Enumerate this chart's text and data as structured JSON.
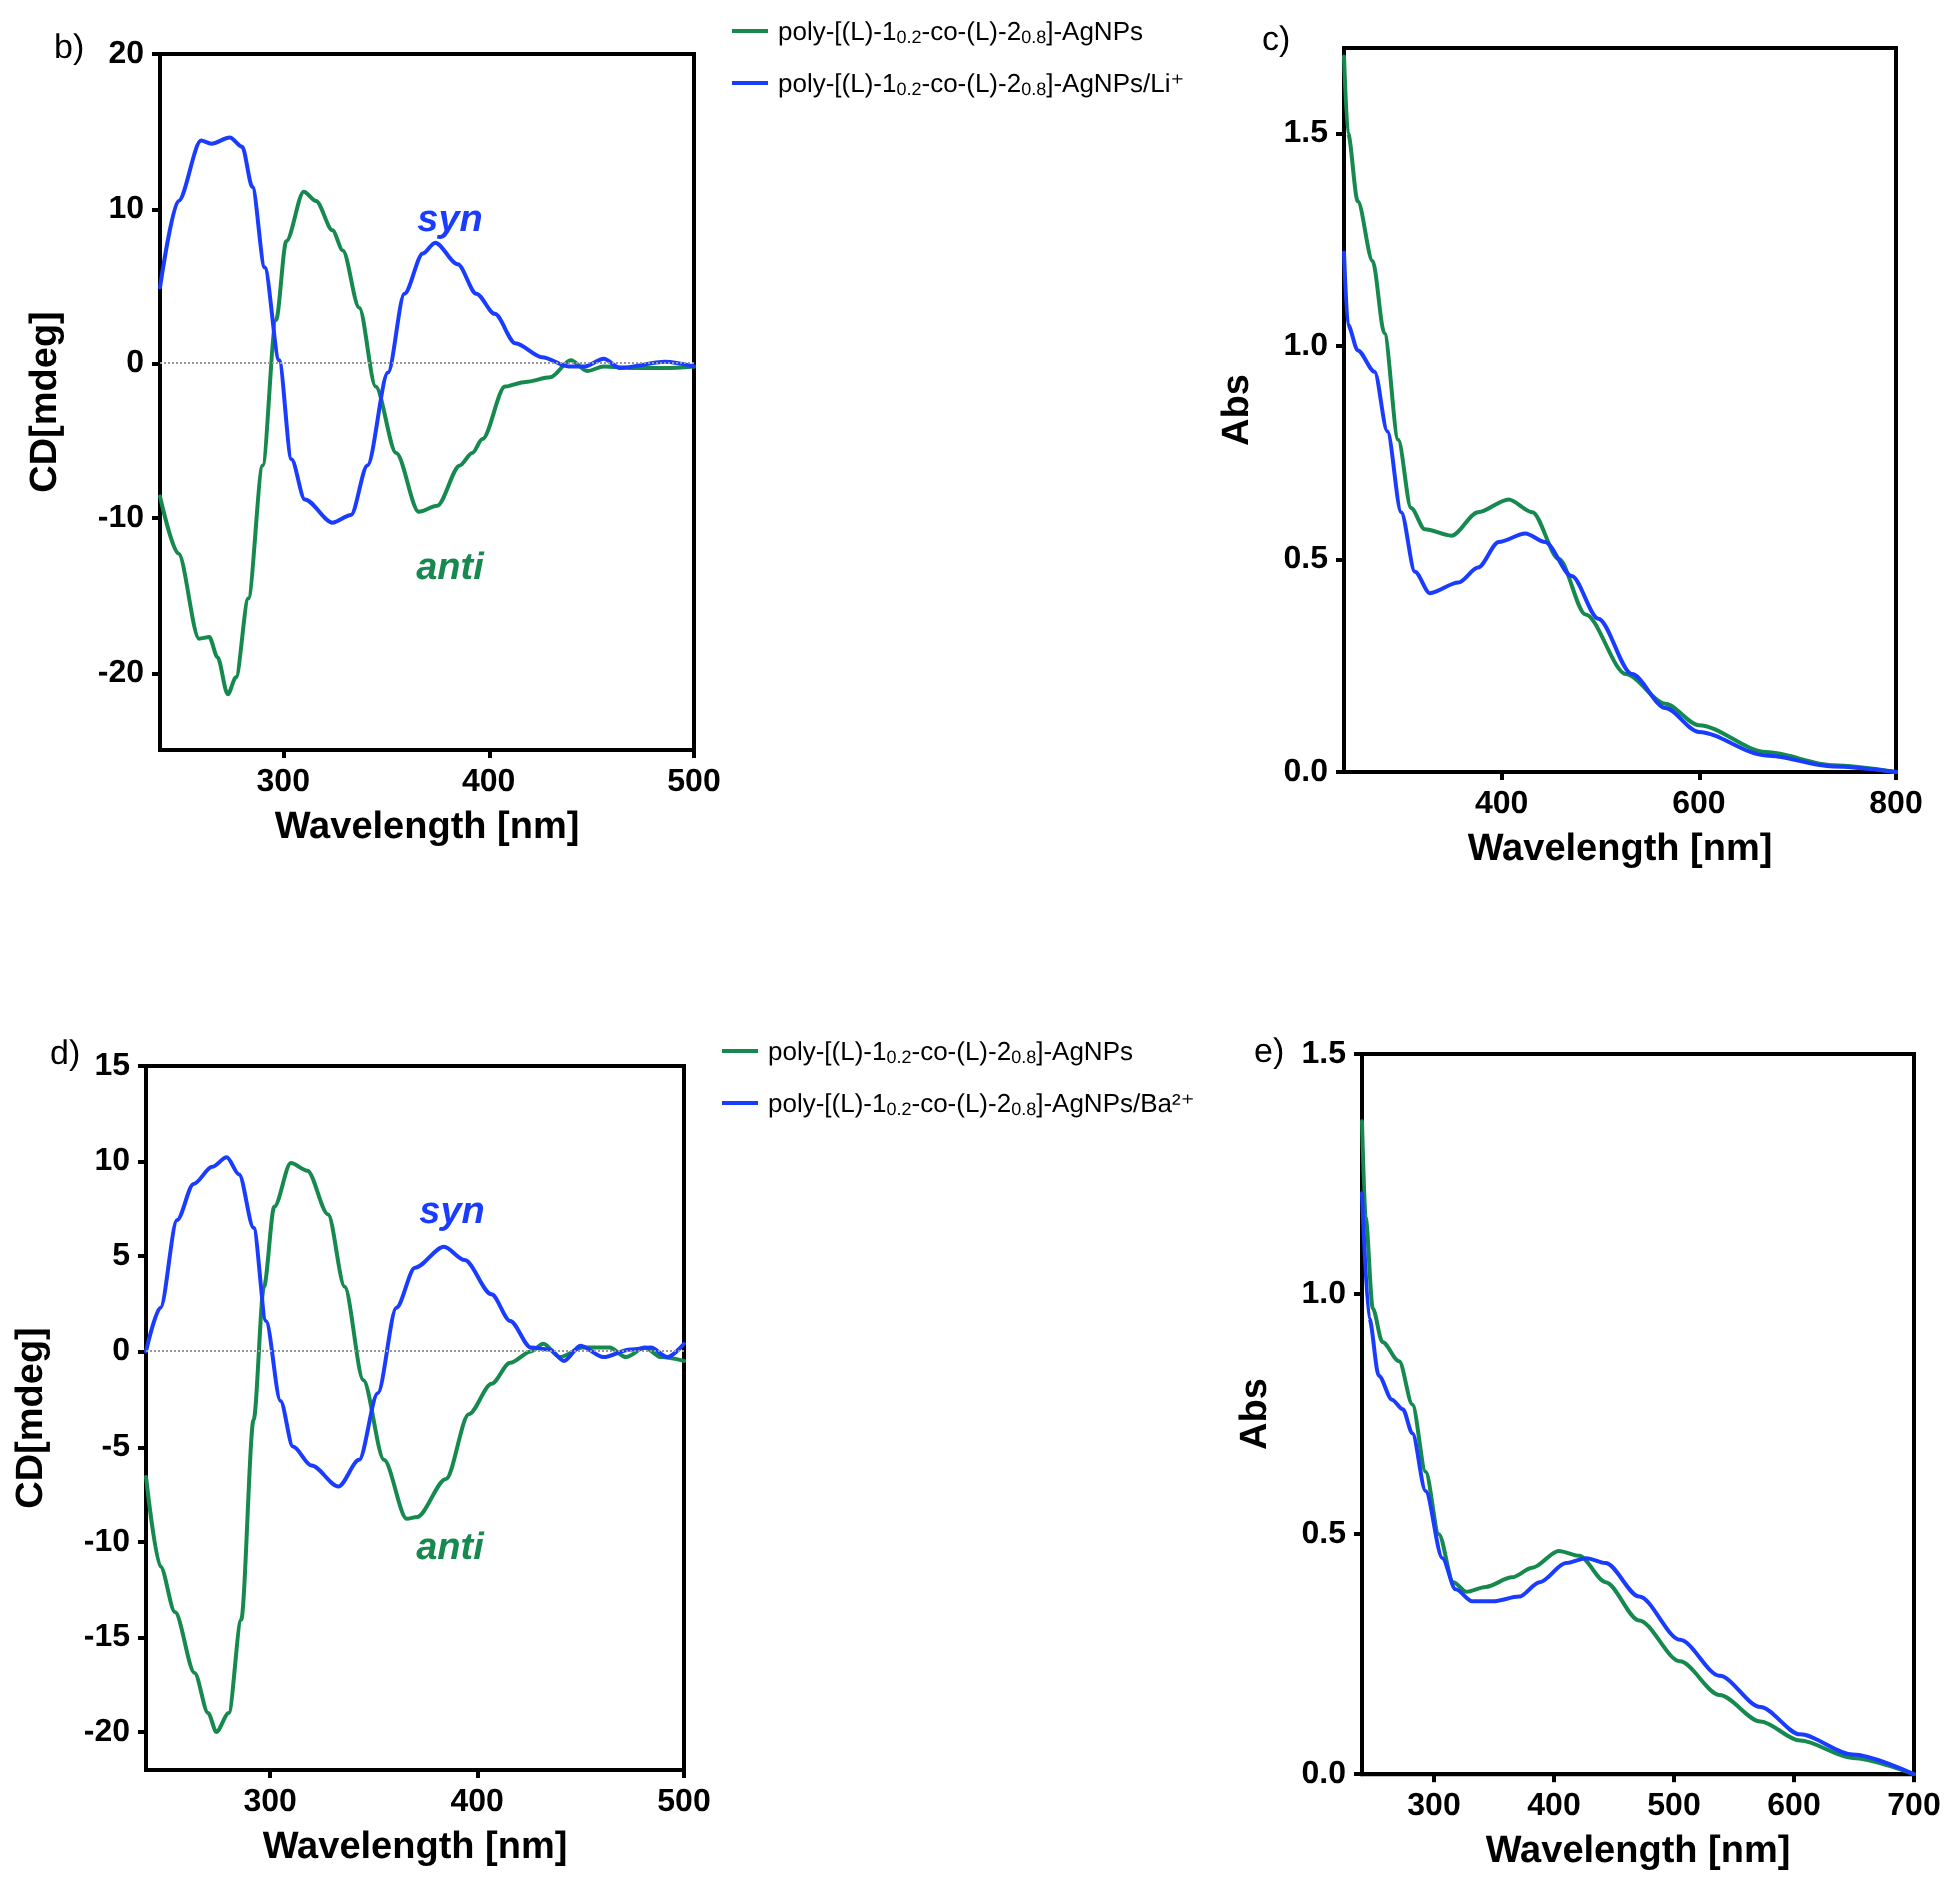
{
  "chart_data": [
    {
      "type": "line",
      "title": "b)",
      "xlabel": "Wavelength [nm]",
      "ylabel": "CD[mdeg]",
      "xlim": [
        240,
        500
      ],
      "xticks": [
        300,
        400,
        500
      ],
      "ylim": [
        -25,
        20
      ],
      "yticks": [
        -20,
        -10,
        0,
        10,
        20
      ],
      "grid": false,
      "legend": "right",
      "marker": "none",
      "line_style": "solid",
      "ref_lines": [
        {
          "axis": "y",
          "value": 0,
          "color": "#999999",
          "line_style": "dotted"
        }
      ],
      "annotations": [
        "syn",
        "anti"
      ],
      "series": [
        {
          "name": "poly-[(L)-1$_{0.2}$-co-(L)-2$_{0.8}$]-AgNPs",
          "color": "#16894f",
          "x": [
            240,
            249,
            259,
            264,
            268,
            273,
            277,
            283,
            290,
            296.5,
            301.5,
            310,
            316,
            324,
            329,
            337,
            345,
            355,
            366,
            375,
            386,
            392,
            397,
            408,
            418,
            430,
            440,
            448,
            456,
            470,
            486,
            500
          ],
          "values": [
            -8.6,
            -12.3,
            -17.8,
            -17.7,
            -19,
            -21.4,
            -20.3,
            -15.2,
            -6.6,
            2.8,
            7.9,
            11.1,
            10.5,
            8.6,
            7.3,
            3.6,
            -1.5,
            -5.8,
            -9.6,
            -9.2,
            -6.6,
            -5.8,
            -4.9,
            -1.5,
            -1.2,
            -0.9,
            0.2,
            -0.5,
            -0.2,
            -0.3,
            -0.3,
            -0.2
          ]
        },
        {
          "name": "poly-[(L)-1$_{0.2}$-co-(L)-2$_{0.8}$]-AgNPs/Li⁺",
          "color": "#1a3cff",
          "x": [
            240,
            249,
            260,
            265,
            274,
            280,
            285,
            291,
            298,
            304,
            310.5,
            324,
            333,
            341,
            351,
            359,
            368,
            374,
            385,
            394,
            403,
            413,
            426,
            439,
            447,
            456,
            464,
            486,
            500
          ],
          "values": [
            4.9,
            10.5,
            14.4,
            14.2,
            14.6,
            14.0,
            11.4,
            6.2,
            0.2,
            -6.2,
            -8.8,
            -10.3,
            -9.8,
            -6.6,
            -0.6,
            4.5,
            7.1,
            7.8,
            6.4,
            4.5,
            3.2,
            1.3,
            0.4,
            -0.2,
            -0.2,
            0.3,
            -0.3,
            0.1,
            -0.2
          ]
        }
      ]
    },
    {
      "type": "line",
      "title": "c)",
      "xlabel": "Wavelength [nm]",
      "ylabel": "Abs",
      "xlim": [
        240,
        800
      ],
      "xticks": [
        400,
        600,
        800
      ],
      "ylim": [
        0,
        1.7
      ],
      "yticks": [
        {
          "value": 0,
          "label": "0.0"
        },
        {
          "value": 0.5,
          "label": "0.5"
        },
        {
          "value": 1,
          "label": "1.0"
        },
        {
          "value": 1.5,
          "label": "1.5"
        }
      ],
      "grid": false,
      "marker": "none",
      "line_style": "solid",
      "series": [
        {
          "color": "#16894f",
          "x": [
            240,
            244,
            254,
            269,
            281,
            295,
            308,
            322,
            349,
            376,
            407,
            431,
            458,
            485,
            526,
            566,
            600,
            668,
            736,
            800
          ],
          "values": [
            1.68,
            1.5,
            1.34,
            1.2,
            1.03,
            0.78,
            0.62,
            0.57,
            0.555,
            0.61,
            0.64,
            0.61,
            0.5,
            0.37,
            0.23,
            0.16,
            0.11,
            0.047,
            0.016,
            0
          ]
        },
        {
          "color": "#1a3cff",
          "x": [
            240,
            244,
            254,
            271,
            284,
            298,
            312,
            327,
            356,
            376,
            397,
            424,
            444,
            471,
            498,
            532,
            566,
            600,
            668,
            736,
            800
          ],
          "values": [
            1.22,
            1.05,
            0.99,
            0.94,
            0.8,
            0.61,
            0.47,
            0.42,
            0.445,
            0.48,
            0.54,
            0.56,
            0.54,
            0.46,
            0.36,
            0.23,
            0.15,
            0.094,
            0.039,
            0.013,
            0
          ]
        }
      ]
    },
    {
      "type": "line",
      "title": "d)",
      "xlabel": "Wavelength [nm]",
      "ylabel": "CD[mdeg]",
      "xlim": [
        240,
        500
      ],
      "xticks": [
        300,
        400,
        500
      ],
      "ylim": [
        -22,
        15
      ],
      "yticks": [
        -20,
        -15,
        -10,
        -5,
        0,
        5,
        10,
        15
      ],
      "grid": false,
      "legend": "right",
      "marker": "none",
      "line_style": "solid",
      "ref_lines": [
        {
          "axis": "y",
          "value": 0,
          "color": "#999999",
          "line_style": "dotted"
        }
      ],
      "annotations": [
        "syn",
        "anti"
      ],
      "series": [
        {
          "name": "poly-[(L)-1$_{0.2}$-co-(L)-2$_{0.8}$]-AgNPs",
          "color": "#16894f",
          "x": [
            240,
            247,
            254,
            263.5,
            270,
            274,
            280,
            286,
            292,
            297,
            302,
            310,
            318,
            328,
            336,
            345,
            355,
            366,
            371,
            385,
            396,
            407,
            416,
            426,
            432,
            440,
            451,
            464,
            472,
            481,
            489,
            500
          ],
          "values": [
            -6.6,
            -11.3,
            -13.7,
            -16.9,
            -19,
            -20,
            -19,
            -14.1,
            -3.6,
            3.4,
            7.6,
            9.9,
            9.5,
            7.2,
            3.4,
            -1.5,
            -5.7,
            -8.8,
            -8.7,
            -6.7,
            -3.3,
            -1.7,
            -0.6,
            0,
            0.4,
            -0.3,
            0.2,
            0.2,
            -0.3,
            0.2,
            -0.3,
            -0.5
          ]
        },
        {
          "name": "poly-[(L)-1$_{0.2}$-co-(L)-2$_{0.8}$]-AgNPs/Ba²⁺",
          "color": "#1a3cff",
          "x": [
            240,
            247,
            255,
            263,
            272,
            279,
            285,
            292,
            298,
            305,
            311,
            320,
            333,
            343,
            352,
            361,
            370,
            384,
            394,
            407,
            416,
            426,
            435,
            442,
            450,
            461,
            474,
            484,
            492,
            500
          ],
          "values": [
            0,
            2.3,
            6.9,
            8.8,
            9.7,
            10.2,
            9.3,
            6.5,
            1.6,
            -2.6,
            -5.0,
            -6.0,
            -7.1,
            -5.7,
            -2.2,
            2.3,
            4.4,
            5.5,
            4.8,
            3.0,
            1.6,
            0.2,
            0.1,
            -0.5,
            0.3,
            -0.3,
            0.1,
            0.2,
            -0.3,
            0.4
          ]
        }
      ]
    },
    {
      "type": "line",
      "title": "e)",
      "xlabel": "Wavelength [nm]",
      "ylabel": "Abs",
      "xlim": [
        240,
        700
      ],
      "xticks": [
        300,
        400,
        500,
        600,
        700
      ],
      "ylim": [
        0,
        1.5
      ],
      "yticks": [
        {
          "value": 0,
          "label": "0.0"
        },
        {
          "value": 0.5,
          "label": "0.5"
        },
        {
          "value": 1,
          "label": "1.0"
        },
        {
          "value": 1.5,
          "label": "1.5"
        }
      ],
      "grid": false,
      "marker": "none",
      "line_style": "solid",
      "series": [
        {
          "color": "#16894f",
          "x": [
            240,
            243,
            249,
            257,
            271,
            282,
            293,
            304,
            316,
            327,
            343,
            365,
            382,
            404,
            421,
            443,
            471,
            505,
            538,
            572,
            605,
            649,
            700
          ],
          "values": [
            1.36,
            1.16,
            0.97,
            0.9,
            0.86,
            0.77,
            0.63,
            0.5,
            0.4,
            0.38,
            0.39,
            0.41,
            0.43,
            0.465,
            0.455,
            0.4,
            0.32,
            0.235,
            0.165,
            0.11,
            0.07,
            0.034,
            0
          ]
        },
        {
          "color": "#1a3cff",
          "x": [
            240,
            246,
            254,
            265,
            274,
            282,
            293,
            307,
            318,
            332,
            349,
            371,
            388,
            410,
            427,
            443,
            471,
            505,
            538,
            572,
            605,
            649,
            700
          ],
          "values": [
            1.21,
            0.95,
            0.83,
            0.78,
            0.76,
            0.71,
            0.59,
            0.45,
            0.385,
            0.36,
            0.36,
            0.37,
            0.4,
            0.44,
            0.45,
            0.44,
            0.37,
            0.28,
            0.205,
            0.14,
            0.083,
            0.041,
            0
          ]
        }
      ]
    }
  ]
}
